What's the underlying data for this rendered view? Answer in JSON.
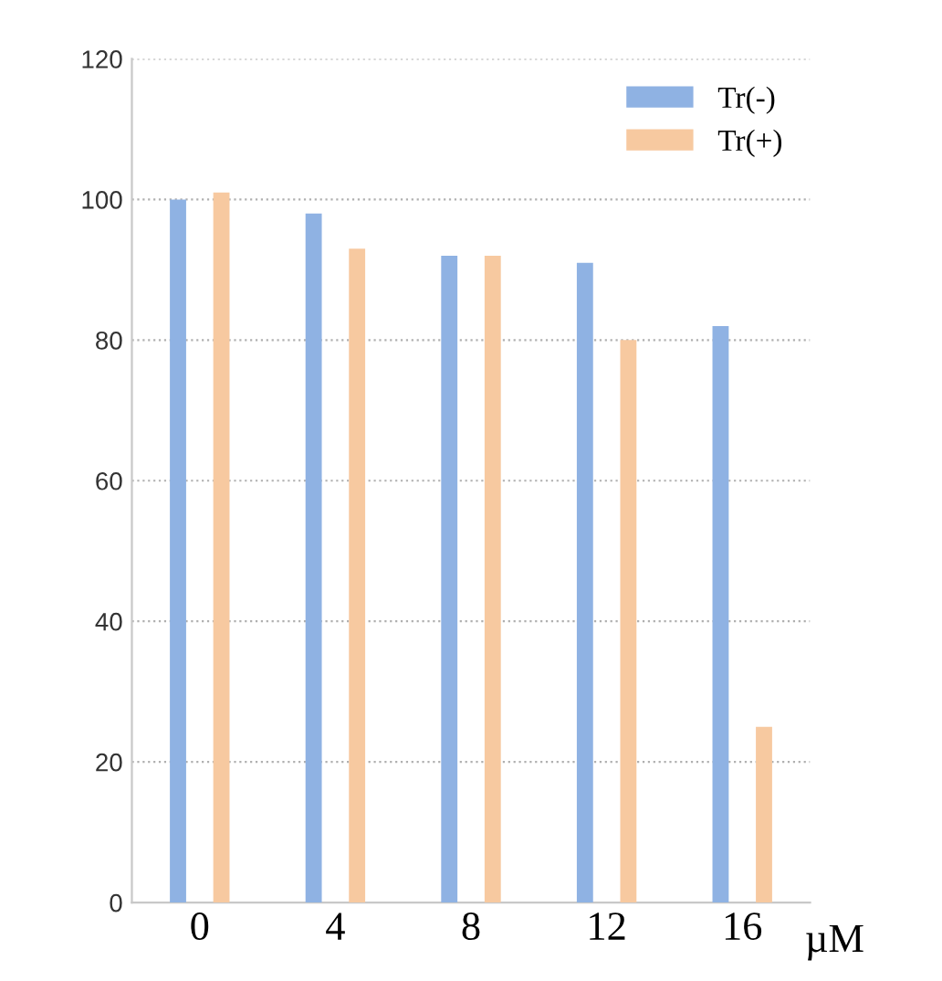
{
  "chart_data": {
    "type": "bar",
    "categories": [
      "0",
      "4",
      "8",
      "12",
      "16"
    ],
    "xlabel": "µM",
    "series": [
      {
        "name": "Tr(-)",
        "color": "#8fb2e3",
        "values": [
          100,
          98,
          92,
          91,
          82
        ]
      },
      {
        "name": "Tr(+)",
        "color": "#f7c9a0",
        "values": [
          101,
          93,
          92,
          80,
          25
        ]
      }
    ],
    "ylim": [
      0,
      120
    ],
    "yticks": [
      0,
      20,
      40,
      60,
      80,
      100,
      120
    ],
    "grid": "y",
    "legend": "top right"
  }
}
